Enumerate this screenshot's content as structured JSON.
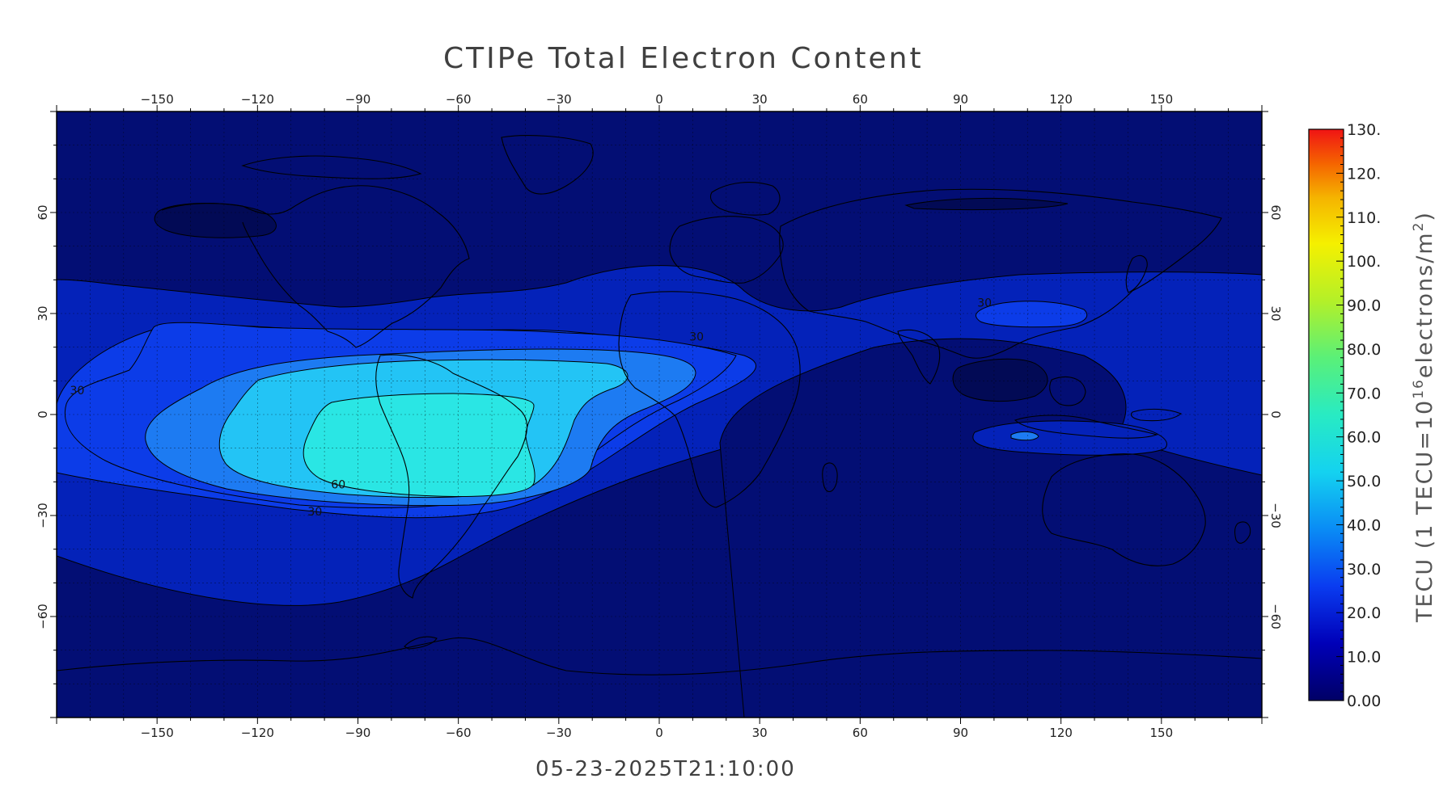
{
  "title": "CTIPe Total Electron Content",
  "timestamp": "05-23-2025T21:10:00",
  "map": {
    "projection": "cylindrical",
    "lon_range": [
      -180,
      180
    ],
    "lat_range": [
      -90,
      90
    ],
    "grid": true,
    "lon_ticks": [
      -150,
      -120,
      -90,
      -60,
      -30,
      0,
      30,
      60,
      90,
      120,
      150
    ],
    "lat_ticks": [
      60,
      30,
      0,
      -30,
      -60
    ],
    "contour_labels": [
      {
        "text": "30",
        "lon": -176,
        "lat": 6
      },
      {
        "text": "30",
        "lon": 9,
        "lat": 22
      },
      {
        "text": "30",
        "lon": 95,
        "lat": 32
      },
      {
        "text": "60",
        "lon": -98,
        "lat": -22
      },
      {
        "text": "30",
        "lon": -105,
        "lat": -30
      }
    ]
  },
  "colorbar": {
    "label": "TECU (1 TECU=10",
    "label_exp": "16",
    "label_tail": "electrons/m",
    "label_exp2": "2",
    "label_close": ")",
    "range": [
      0,
      130
    ],
    "tick_labels": [
      "130.",
      "120.",
      "110.",
      "100.",
      "90.0",
      "80.0",
      "70.0",
      "60.0",
      "50.0",
      "40.0",
      "30.0",
      "20.0",
      "10.0",
      "0.00"
    ]
  },
  "colors": {
    "level_0_10": "#030e74",
    "level_10_20": "#0422b9",
    "level_20_30": "#0c3ce8",
    "level_30_40": "#1d7bf2",
    "level_40_50": "#23c4f5",
    "level_50_60": "#2ae6e4",
    "level_60_70": "#2ff2cc"
  }
}
